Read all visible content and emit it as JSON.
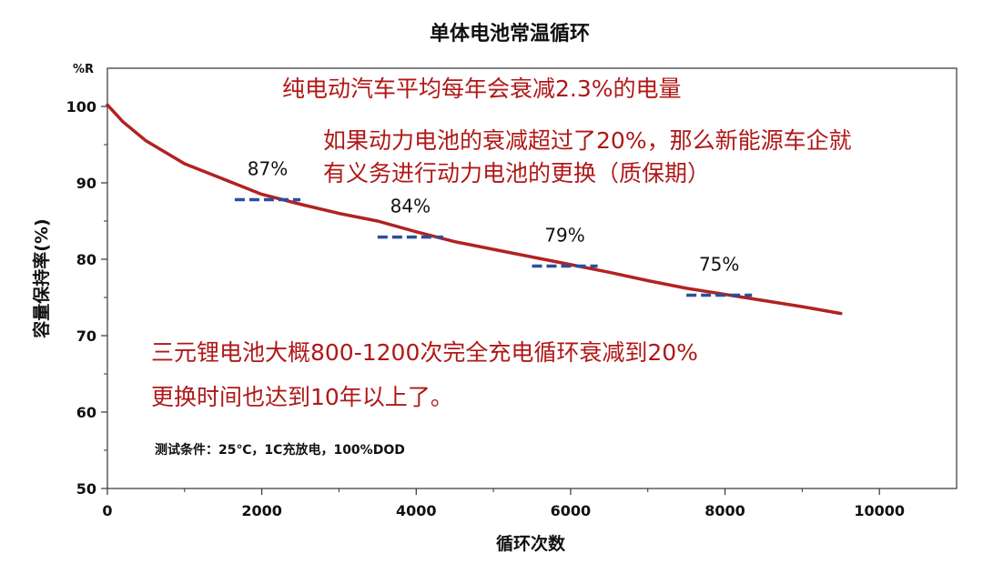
{
  "chart_data": {
    "type": "line",
    "title": "单体电池常温循环",
    "xlabel": "循环次数",
    "ylabel": "容量保持率(%)",
    "corner_label": "%R",
    "xlim": [
      0,
      11000
    ],
    "ylim": [
      50,
      105
    ],
    "x_ticks": [
      0,
      2000,
      4000,
      6000,
      8000,
      10000
    ],
    "y_ticks": [
      50,
      60,
      70,
      80,
      90,
      100
    ],
    "grid": false,
    "line_color": "#b22222",
    "series": [
      {
        "x": [
          0,
          200,
          500,
          1000,
          1500,
          2000,
          2500,
          3000,
          3500,
          4000,
          4500,
          5000,
          5500,
          6000,
          6500,
          7000,
          7500,
          8000,
          8500,
          9000,
          9500
        ],
        "values": [
          100.2,
          98.0,
          95.5,
          92.5,
          90.5,
          88.5,
          87.2,
          86.0,
          85.0,
          83.6,
          82.3,
          81.3,
          80.3,
          79.3,
          78.3,
          77.2,
          76.2,
          75.4,
          74.6,
          73.8,
          72.9
        ]
      }
    ],
    "reference_marks": [
      {
        "label": "87%",
        "x_start": 1650,
        "x_end": 2500,
        "y": 87.8
      },
      {
        "label": "84%",
        "x_start": 3500,
        "x_end": 4350,
        "y": 82.9
      },
      {
        "label": "79%",
        "x_start": 5500,
        "x_end": 6350,
        "y": 79.1
      },
      {
        "label": "75%",
        "x_start": 7500,
        "x_end": 8350,
        "y": 75.3
      }
    ],
    "annotations": [
      "纯电动汽车平均每年会衰减2.3%的电量",
      "如果动力电池的衰减超过了20%，那么新能源车企就",
      "有义务进行动力电池的更换（质保期）",
      "三元锂电池大概800-1200次完全充电循环衰减到20%",
      "更换时间也达到10年以上了。"
    ],
    "test_conditions": "测试条件：25℃，1C充放电，100%DOD"
  }
}
